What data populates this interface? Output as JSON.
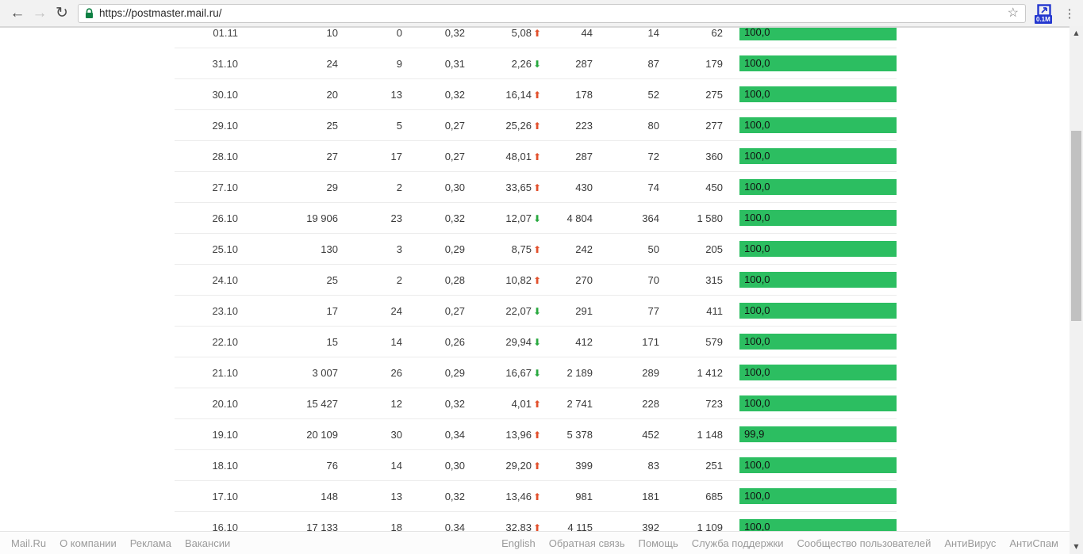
{
  "browser": {
    "url": "https://postmaster.mail.ru/",
    "extension_badge": "0.1M"
  },
  "icons": {
    "back": "←",
    "forward": "→",
    "reload": "↻",
    "star": "☆",
    "menu": "⋮",
    "scroll_up": "▲",
    "scroll_down": "▼",
    "trend_up": "⬆",
    "trend_down": "⬇"
  },
  "colors": {
    "bar_green": "#2cbe61",
    "trend_up_red": "#e2502c",
    "trend_down_green": "#27a83e",
    "badge_blue": "#2538cf",
    "lock_green": "#0e8043"
  },
  "table": {
    "rows": [
      {
        "date": "01.11",
        "c2": "10",
        "c3": "0",
        "c4": "0,32",
        "pct": "5,08",
        "trend": "up",
        "c6": "44",
        "c7": "14",
        "c8": "62",
        "bar_label": "100,0",
        "bar_value": 100.0
      },
      {
        "date": "31.10",
        "c2": "24",
        "c3": "9",
        "c4": "0,31",
        "pct": "2,26",
        "trend": "down",
        "c6": "287",
        "c7": "87",
        "c8": "179",
        "bar_label": "100,0",
        "bar_value": 100.0
      },
      {
        "date": "30.10",
        "c2": "20",
        "c3": "13",
        "c4": "0,32",
        "pct": "16,14",
        "trend": "up",
        "c6": "178",
        "c7": "52",
        "c8": "275",
        "bar_label": "100,0",
        "bar_value": 100.0
      },
      {
        "date": "29.10",
        "c2": "25",
        "c3": "5",
        "c4": "0,27",
        "pct": "25,26",
        "trend": "up",
        "c6": "223",
        "c7": "80",
        "c8": "277",
        "bar_label": "100,0",
        "bar_value": 100.0
      },
      {
        "date": "28.10",
        "c2": "27",
        "c3": "17",
        "c4": "0,27",
        "pct": "48,01",
        "trend": "up",
        "c6": "287",
        "c7": "72",
        "c8": "360",
        "bar_label": "100,0",
        "bar_value": 100.0
      },
      {
        "date": "27.10",
        "c2": "29",
        "c3": "2",
        "c4": "0,30",
        "pct": "33,65",
        "trend": "up",
        "c6": "430",
        "c7": "74",
        "c8": "450",
        "bar_label": "100,0",
        "bar_value": 100.0
      },
      {
        "date": "26.10",
        "c2": "19 906",
        "c3": "23",
        "c4": "0,32",
        "pct": "12,07",
        "trend": "down",
        "c6": "4 804",
        "c7": "364",
        "c8": "1 580",
        "bar_label": "100,0",
        "bar_value": 100.0
      },
      {
        "date": "25.10",
        "c2": "130",
        "c3": "3",
        "c4": "0,29",
        "pct": "8,75",
        "trend": "up",
        "c6": "242",
        "c7": "50",
        "c8": "205",
        "bar_label": "100,0",
        "bar_value": 100.0
      },
      {
        "date": "24.10",
        "c2": "25",
        "c3": "2",
        "c4": "0,28",
        "pct": "10,82",
        "trend": "up",
        "c6": "270",
        "c7": "70",
        "c8": "315",
        "bar_label": "100,0",
        "bar_value": 100.0
      },
      {
        "date": "23.10",
        "c2": "17",
        "c3": "24",
        "c4": "0,27",
        "pct": "22,07",
        "trend": "down",
        "c6": "291",
        "c7": "77",
        "c8": "411",
        "bar_label": "100,0",
        "bar_value": 100.0
      },
      {
        "date": "22.10",
        "c2": "15",
        "c3": "14",
        "c4": "0,26",
        "pct": "29,94",
        "trend": "down",
        "c6": "412",
        "c7": "171",
        "c8": "579",
        "bar_label": "100,0",
        "bar_value": 100.0
      },
      {
        "date": "21.10",
        "c2": "3 007",
        "c3": "26",
        "c4": "0,29",
        "pct": "16,67",
        "trend": "down",
        "c6": "2 189",
        "c7": "289",
        "c8": "1 412",
        "bar_label": "100,0",
        "bar_value": 100.0
      },
      {
        "date": "20.10",
        "c2": "15 427",
        "c3": "12",
        "c4": "0,32",
        "pct": "4,01",
        "trend": "up",
        "c6": "2 741",
        "c7": "228",
        "c8": "723",
        "bar_label": "100,0",
        "bar_value": 100.0
      },
      {
        "date": "19.10",
        "c2": "20 109",
        "c3": "30",
        "c4": "0,34",
        "pct": "13,96",
        "trend": "up",
        "c6": "5 378",
        "c7": "452",
        "c8": "1 148",
        "bar_label": "99,9",
        "bar_value": 99.9
      },
      {
        "date": "18.10",
        "c2": "76",
        "c3": "14",
        "c4": "0,30",
        "pct": "29,20",
        "trend": "up",
        "c6": "399",
        "c7": "83",
        "c8": "251",
        "bar_label": "100,0",
        "bar_value": 100.0
      },
      {
        "date": "17.10",
        "c2": "148",
        "c3": "13",
        "c4": "0,32",
        "pct": "13,46",
        "trend": "up",
        "c6": "981",
        "c7": "181",
        "c8": "685",
        "bar_label": "100,0",
        "bar_value": 100.0
      },
      {
        "date": "16.10",
        "c2": "17 133",
        "c3": "18",
        "c4": "0,34",
        "pct": "32,83",
        "trend": "up",
        "c6": "4 115",
        "c7": "392",
        "c8": "1 109",
        "bar_label": "100,0",
        "bar_value": 100.0
      }
    ]
  },
  "footer": {
    "left_links": [
      "Mail.Ru",
      "О компании",
      "Реклама",
      "Вакансии"
    ],
    "right_links": [
      "English",
      "Обратная связь",
      "Помощь",
      "Служба поддержки",
      "Сообщество пользователей",
      "АнтиВирус",
      "АнтиСпам"
    ]
  }
}
